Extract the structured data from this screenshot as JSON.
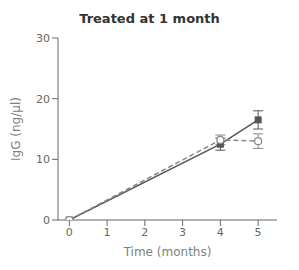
{
  "chart_data": {
    "type": "line",
    "title": "Treated at 1 month",
    "x_label": "Time (months)",
    "y_label": "IgG (ng/µl)",
    "xlim": [
      -0.3,
      5.5
    ],
    "ylim": [
      0,
      30
    ],
    "xticks": [
      0,
      1,
      2,
      3,
      4,
      5
    ],
    "yticks": [
      0,
      10,
      20,
      30
    ],
    "grid": false,
    "series": [
      {
        "color": "#555555",
        "marker": "square",
        "line_style": "solid",
        "x": [
          0,
          4,
          5
        ],
        "values": [
          0.0,
          12.5,
          16.5
        ],
        "yerr": [
          0.0,
          1.0,
          1.5
        ]
      },
      {
        "color": "#888888",
        "marker": "open_circle",
        "line_style": "dashed",
        "x": [
          0,
          4,
          5
        ],
        "values": [
          0.0,
          13.2,
          13.0
        ],
        "yerr": [
          0.0,
          0.8,
          1.2
        ]
      }
    ]
  }
}
